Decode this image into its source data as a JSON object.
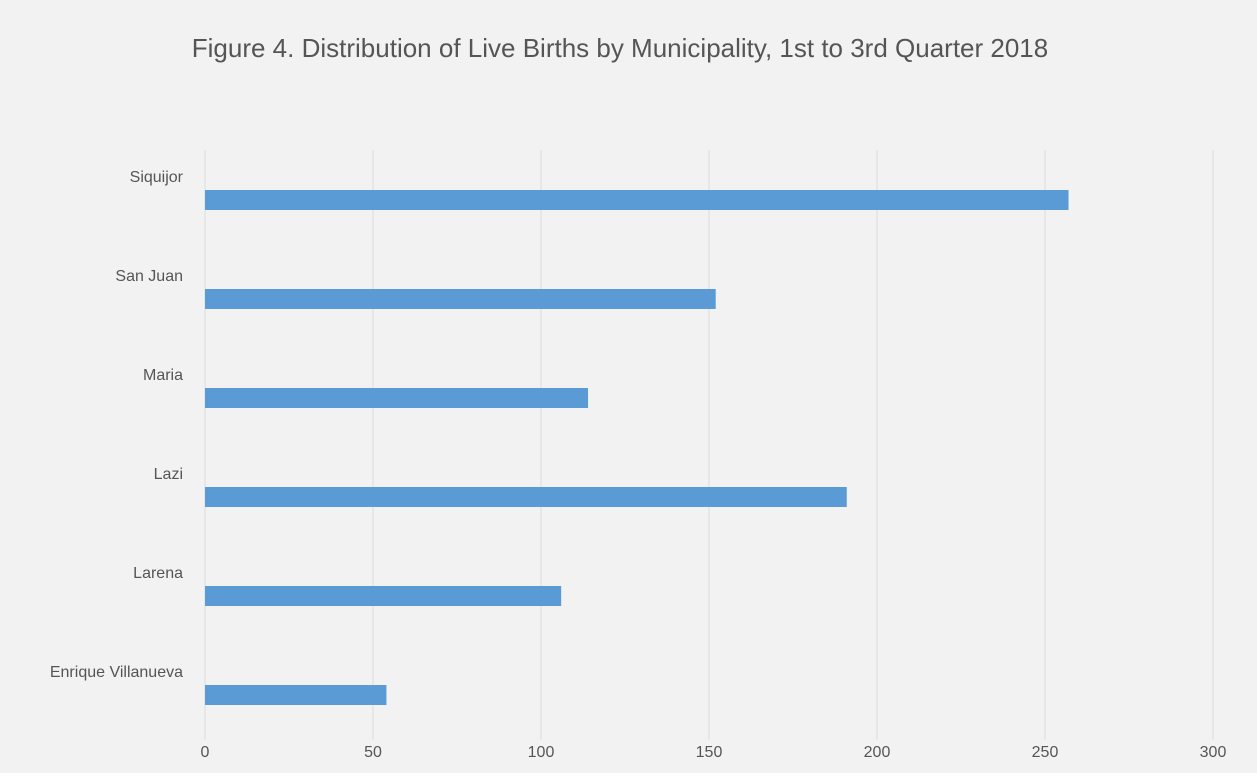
{
  "chart_data": {
    "type": "barh",
    "title": "Figure 4. Distribution of Live Births by Municipality, 1st to 3rd Quarter 2018",
    "categories": [
      "Siquijor",
      "San Juan",
      "Maria",
      "Lazi",
      "Larena",
      "Enrique Villanueva"
    ],
    "values": [
      257,
      152,
      114,
      191,
      106,
      54
    ],
    "color": "#5b9bd5",
    "xlim": [
      0,
      300
    ],
    "xticks": [
      0,
      50,
      100,
      150,
      200,
      250,
      300
    ],
    "grid": true
  }
}
